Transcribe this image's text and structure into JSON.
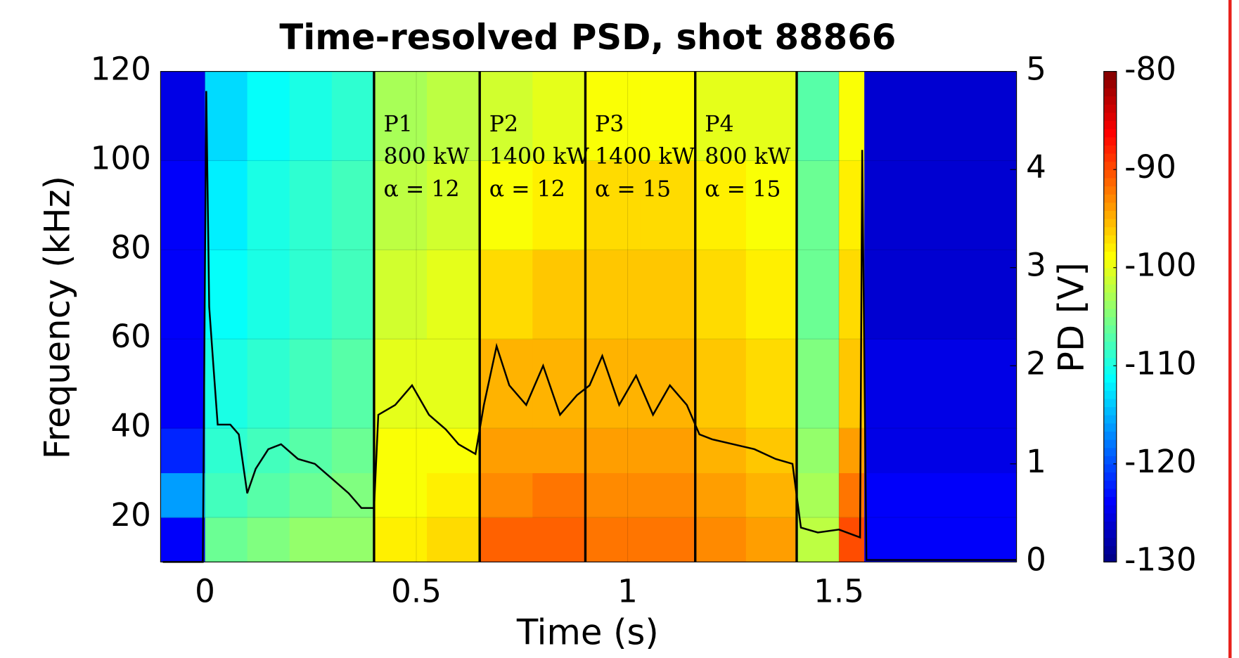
{
  "chart_data": {
    "type": "heatmap",
    "title": "Time-resolved PSD, shot 88866",
    "x_label": "Time (s)",
    "y_label": "Frequency (kHz)",
    "y2_label": "PD [V]",
    "xlim": [
      -0.105,
      1.92
    ],
    "ylim": [
      10,
      120
    ],
    "y2lim": [
      0,
      5
    ],
    "clim": [
      -130,
      -80
    ],
    "xticks": [
      0,
      0.5,
      1,
      1.5
    ],
    "yticks": [
      20,
      40,
      60,
      80,
      100,
      120
    ],
    "y2ticks": [
      0,
      1,
      2,
      3,
      4,
      5
    ],
    "cticks": [
      -80,
      -90,
      -100,
      -110,
      -120,
      -130
    ],
    "colormap": "jet",
    "grid": true,
    "time_bins": [
      -0.105,
      0,
      0.1,
      0.2,
      0.3,
      0.4,
      0.525,
      0.65,
      0.775,
      0.9,
      1.03,
      1.16,
      1.28,
      1.4,
      1.5,
      1.56,
      1.92
    ],
    "freq_bins": [
      10,
      20,
      30,
      40,
      60,
      80,
      100,
      120
    ],
    "z": [
      [
        -124,
        -106,
        -105,
        -104,
        -104,
        -98,
        -97,
        -91,
        -91,
        -92,
        -92,
        -93,
        -94,
        -102,
        -90,
        -124
      ],
      [
        -116,
        -108,
        -107,
        -106,
        -105,
        -99,
        -98,
        -93,
        -92,
        -93,
        -93,
        -94,
        -95,
        -103,
        -92,
        -124
      ],
      [
        -122,
        -109,
        -108,
        -107,
        -106,
        -99,
        -99,
        -94,
        -94,
        -94,
        -94,
        -95,
        -96,
        -104,
        -94,
        -125
      ],
      [
        -124,
        -110,
        -109,
        -108,
        -107,
        -100,
        -100,
        -95,
        -95,
        -95,
        -95,
        -96,
        -97,
        -105,
        -96,
        -125
      ],
      [
        -124,
        -111,
        -110,
        -109,
        -108,
        -101,
        -100,
        -97,
        -96,
        -96,
        -96,
        -97,
        -98,
        -106,
        -97,
        -126
      ],
      [
        -124,
        -112,
        -110,
        -109,
        -108,
        -102,
        -101,
        -99,
        -98,
        -97,
        -97,
        -98,
        -99,
        -106,
        -98,
        -126
      ],
      [
        -125,
        -113,
        -111,
        -110,
        -109,
        -103,
        -102,
        -101,
        -100,
        -99,
        -99,
        -100,
        -100,
        -107,
        -99,
        -126
      ]
    ],
    "phase_boundaries": [
      0.4,
      0.65,
      0.9,
      1.16,
      1.4
    ],
    "annotations": [
      [
        "P1",
        "800 kW",
        "α = 12"
      ],
      [
        "P2",
        "1400 kW",
        "α = 12"
      ],
      [
        "P3",
        "1400 kW",
        "α = 15"
      ],
      [
        "P4",
        "800 kW",
        "α = 15"
      ]
    ],
    "line": {
      "axis": "y2",
      "color": "#000000",
      "x": [
        -0.1,
        -0.005,
        0.003,
        0.01,
        0.02,
        0.03,
        0.06,
        0.08,
        0.1,
        0.12,
        0.15,
        0.18,
        0.22,
        0.26,
        0.3,
        0.34,
        0.37,
        0.4,
        0.41,
        0.45,
        0.49,
        0.53,
        0.57,
        0.6,
        0.64,
        0.66,
        0.69,
        0.72,
        0.76,
        0.8,
        0.84,
        0.88,
        0.91,
        0.94,
        0.98,
        1.02,
        1.06,
        1.1,
        1.14,
        1.17,
        1.2,
        1.25,
        1.3,
        1.35,
        1.39,
        1.41,
        1.45,
        1.5,
        1.55,
        1.555,
        1.565,
        1.6,
        1.92
      ],
      "values": [
        0,
        0,
        4.8,
        2.6,
        2.0,
        1.4,
        1.4,
        1.3,
        0.7,
        0.95,
        1.15,
        1.2,
        1.05,
        1.0,
        0.85,
        0.7,
        0.55,
        0.55,
        1.5,
        1.6,
        1.8,
        1.5,
        1.35,
        1.2,
        1.1,
        1.6,
        2.2,
        1.8,
        1.6,
        2.0,
        1.5,
        1.7,
        1.8,
        2.1,
        1.6,
        1.9,
        1.5,
        1.8,
        1.6,
        1.3,
        1.25,
        1.2,
        1.15,
        1.05,
        1.0,
        0.35,
        0.3,
        0.33,
        0.25,
        4.2,
        0.02,
        0.02,
        0.02
      ]
    }
  }
}
